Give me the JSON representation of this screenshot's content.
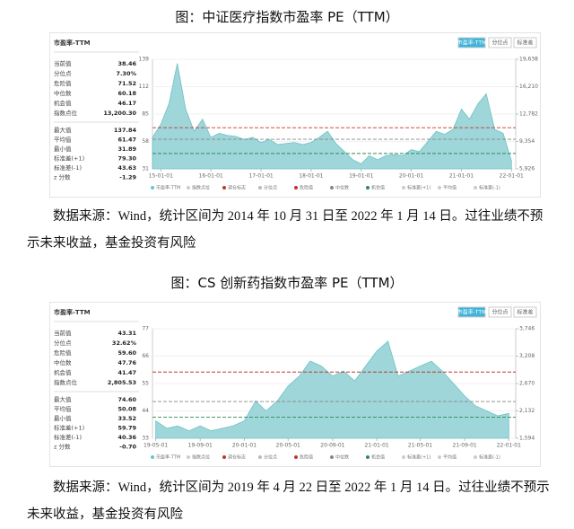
{
  "figures": [
    {
      "caption": "图：中证医疗指数市盈率 PE（TTM）",
      "panel": {
        "title": "市盈率-TTM",
        "tabs": [
          "市盈率-TTM",
          "分位点",
          "标准差"
        ],
        "stats": [
          [
            "当前值",
            "38.46"
          ],
          [
            "分位点",
            "7.30%"
          ],
          [
            "危险值",
            "71.52"
          ],
          [
            "中位数",
            "60.18"
          ],
          [
            "机会值",
            "46.17"
          ],
          [
            "指数点位",
            "13,200.30"
          ]
        ],
        "stats2": [
          [
            "最大值",
            "137.84"
          ],
          [
            "平均值",
            "61.47"
          ],
          [
            "最小值",
            "31.89"
          ],
          [
            "标准差(+1)",
            "79.30"
          ],
          [
            "标准差(-1)",
            "43.63"
          ],
          [
            "z 分数",
            "-1.29"
          ]
        ]
      },
      "chart": {
        "type": "area",
        "color": "#9fd6d9",
        "x": [
          "14-11-01",
          "15-01-01",
          "15-03-01",
          "15-05-01",
          "15-07-01",
          "15-09-01",
          "15-11-01",
          "16-01-01",
          "16-03-01",
          "16-05-01",
          "16-07-01",
          "16-09-01",
          "16-11-01",
          "17-01-01",
          "17-03-01",
          "17-05-01",
          "17-07-01",
          "17-09-01",
          "17-11-01",
          "18-01-01",
          "18-03-01",
          "18-05-01",
          "18-07-01",
          "18-09-01",
          "18-11-01",
          "19-01-01",
          "19-03-01",
          "19-05-01",
          "19-07-01",
          "19-09-01",
          "19-11-01",
          "20-01-01",
          "20-03-01",
          "20-05-01",
          "20-07-01",
          "20-09-01",
          "20-11-01",
          "21-01-01",
          "21-03-01",
          "21-05-01",
          "21-07-01",
          "21-09-01",
          "21-11-01",
          "22-01-01"
        ],
        "values": [
          62,
          75,
          95,
          135,
          90,
          68,
          80,
          62,
          66,
          64,
          63,
          60,
          62,
          57,
          60,
          55,
          56,
          57,
          55,
          57,
          62,
          68,
          56,
          48,
          40,
          36,
          44,
          40,
          44,
          45,
          44,
          50,
          48,
          58,
          68,
          65,
          70,
          90,
          80,
          95,
          105,
          70,
          66,
          39
        ],
        "xlim": [
          "14-11-01",
          "22-02-01"
        ],
        "xticks": [
          "15-01-01",
          "16-01-01",
          "17-01-01",
          "18-01-01",
          "19-01-01",
          "20-01-01",
          "21-01-01",
          "22-01-01"
        ],
        "ylim": [
          31,
          139
        ],
        "yticks": [
          31,
          58,
          85,
          112,
          139
        ],
        "y2lim": [
          5926,
          19638
        ],
        "y2ticks": [
          {
            "value": 5926,
            "label": "5,926"
          },
          {
            "value": 9354,
            "label": "9,354"
          },
          {
            "value": 12782,
            "label": "12,782"
          },
          {
            "value": 16210,
            "label": "16,210"
          },
          {
            "value": 19638,
            "label": "19,638"
          }
        ],
        "legend": [
          "市盈率-TTM",
          "指数点位",
          "调仓标志",
          "分位点",
          "危险值",
          "中位数",
          "机会值",
          "标准差(+1)",
          "平均值",
          "标准差(-1)"
        ]
      },
      "source": "数据来源：Wind，统计区间为 2014 年 10 月 31 日至 2022 年 1 月 14 日。过往业绩不预示未来收益，基金投资有风险"
    },
    {
      "caption": "图：CS 创新药指数市盈率 PE（TTM）",
      "panel": {
        "title": "市盈率-TTM",
        "tabs": [
          "市盈率-TTM",
          "分位点",
          "标准差"
        ],
        "stats": [
          [
            "当前值",
            "43.31"
          ],
          [
            "分位点",
            "32.62%"
          ],
          [
            "危险值",
            "59.60"
          ],
          [
            "中位数",
            "47.76"
          ],
          [
            "机会值",
            "41.47"
          ],
          [
            "指数点位",
            "2,805.53"
          ]
        ],
        "stats2": [
          [
            "最大值",
            "74.60"
          ],
          [
            "平均值",
            "50.08"
          ],
          [
            "最小值",
            "33.52"
          ],
          [
            "标准差(+1)",
            "59.79"
          ],
          [
            "标准差(-1)",
            "40.36"
          ],
          [
            "z 分数",
            "-0.70"
          ]
        ]
      },
      "chart": {
        "type": "area",
        "color": "#9fd6d9",
        "x": [
          "19-05-01",
          "19-06-01",
          "19-07-01",
          "19-08-01",
          "19-09-01",
          "19-10-01",
          "19-11-01",
          "19-12-01",
          "20-01-01",
          "20-02-01",
          "20-03-01",
          "20-04-01",
          "20-05-01",
          "20-06-01",
          "20-07-01",
          "20-08-01",
          "20-09-01",
          "20-10-01",
          "20-11-01",
          "20-12-01",
          "21-01-01",
          "21-02-01",
          "21-03-01",
          "21-04-01",
          "21-05-01",
          "21-06-01",
          "21-07-01",
          "21-08-01",
          "21-09-01",
          "21-10-01",
          "21-11-01",
          "21-12-01",
          "22-01-01"
        ],
        "values": [
          40,
          37,
          38,
          36,
          38,
          36,
          37,
          38,
          40,
          48,
          44,
          48,
          54,
          58,
          64,
          62,
          58,
          60,
          56,
          62,
          68,
          72,
          58,
          60,
          62,
          64,
          60,
          55,
          50,
          46,
          44,
          42,
          43
        ],
        "xlim": [
          "19-04-22",
          "22-01-20"
        ],
        "xticks": [
          "19-05-01",
          "19-09-01",
          "20-01-01",
          "20-05-01",
          "20-09-01",
          "21-01-01",
          "21-05-01",
          "21-09-01",
          "22-01-01"
        ],
        "ylim": [
          33,
          77
        ],
        "yticks": [
          33,
          44,
          55,
          66,
          77
        ],
        "y2lim": [
          1594,
          3746
        ],
        "y2ticks": [
          {
            "value": 1594,
            "label": "1,594"
          },
          {
            "value": 2132,
            "label": "2,132"
          },
          {
            "value": 2670,
            "label": "2,670"
          },
          {
            "value": 3208,
            "label": "3,208"
          },
          {
            "value": 3746,
            "label": "3,746"
          }
        ],
        "legend": [
          "市盈率-TTM",
          "指数点位",
          "调仓标志",
          "分位点",
          "危险值",
          "中位数",
          "机会值",
          "标准差(+1)",
          "平均值",
          "标准差(-1)"
        ]
      },
      "source": "数据来源：Wind，统计区间为 2019 年 4 月 22 日至 2022 年 1 月 14 日。过往业绩不预示未来收益，基金投资有风险"
    }
  ]
}
